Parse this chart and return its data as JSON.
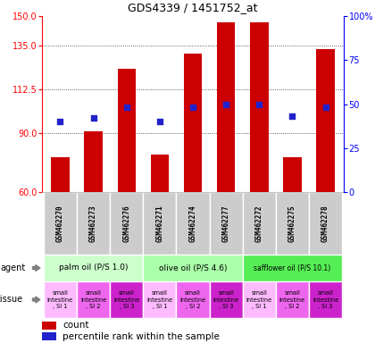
{
  "title": "GDS4339 / 1451752_at",
  "samples": [
    "GSM462270",
    "GSM462273",
    "GSM462276",
    "GSM462271",
    "GSM462274",
    "GSM462277",
    "GSM462272",
    "GSM462275",
    "GSM462278"
  ],
  "counts": [
    78,
    91,
    123,
    79,
    131,
    147,
    147,
    78,
    133
  ],
  "percentiles": [
    40,
    42,
    48,
    40,
    48,
    50,
    50,
    43,
    48
  ],
  "ylim_left": [
    60,
    150
  ],
  "ylim_right": [
    0,
    100
  ],
  "yticks_left": [
    60,
    90,
    112.5,
    135,
    150
  ],
  "yticks_right": [
    0,
    25,
    50,
    75,
    100
  ],
  "bar_color": "#cc0000",
  "dot_color": "#2222cc",
  "agent_labels": [
    "palm oil (P/S 1.0)",
    "olive oil (P/S 4.6)",
    "safflower oil (P/S 10.1)"
  ],
  "agent_colors": [
    "#ccffcc",
    "#aaffaa",
    "#55ee55"
  ],
  "tissue_colors_pattern": [
    "#ffbbff",
    "#ee66ee",
    "#cc22cc"
  ],
  "grid_color": "#333333",
  "bg_color": "#ffffff",
  "sample_bg": "#cccccc",
  "border_color": "#aaaaaa"
}
